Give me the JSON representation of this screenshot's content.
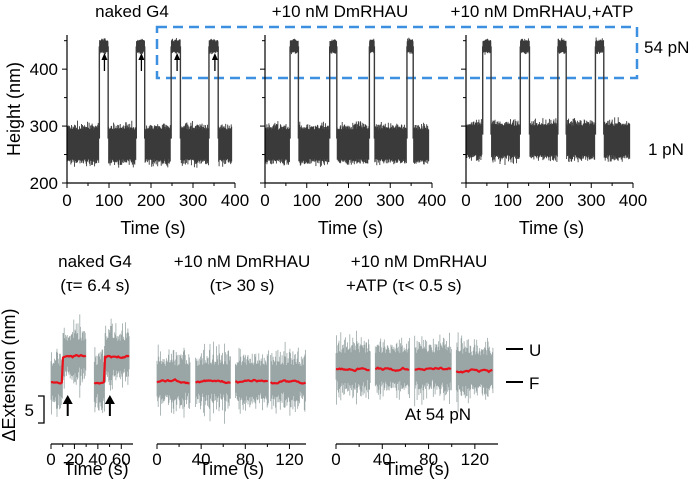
{
  "chart_data": [
    {
      "type": "line",
      "title": "naked G4",
      "xlabel": "Time (s)",
      "ylabel": "Height (nm)",
      "xlim": [
        0,
        400
      ],
      "ylim": [
        200,
        460
      ],
      "xticks": [
        "0",
        "100",
        "200",
        "300",
        "400"
      ],
      "yticks": [
        "200",
        "300",
        "400"
      ],
      "low_level_nm": 268,
      "high_level_nm": 440,
      "high_intervals_s": [
        [
          77,
          98
        ],
        [
          165,
          185
        ],
        [
          248,
          270
        ],
        [
          338,
          360
        ]
      ],
      "arrow_times_s": [
        82,
        170,
        255,
        345
      ]
    },
    {
      "type": "line",
      "title": "+10 nM DmRHAU",
      "xlabel": "Time (s)",
      "xlim": [
        0,
        400
      ],
      "ylim": [
        200,
        460
      ],
      "xticks": [
        "0",
        "100",
        "200",
        "300",
        "400"
      ],
      "low_level_nm": 268,
      "high_level_nm": 440,
      "high_intervals_s": [
        [
          60,
          80
        ],
        [
          155,
          172
        ],
        [
          250,
          262
        ],
        [
          340,
          355
        ]
      ]
    },
    {
      "type": "line",
      "title": "+10 nM DmRHAU,+ATP",
      "xlabel": "Time (s)",
      "xlim": [
        0,
        400
      ],
      "ylim": [
        200,
        460
      ],
      "xticks": [
        "0",
        "100",
        "200",
        "300",
        "400"
      ],
      "low_level_nm": 275,
      "high_level_nm": 440,
      "high_intervals_s": [
        [
          40,
          60
        ],
        [
          130,
          152
        ],
        [
          220,
          240
        ],
        [
          310,
          330
        ]
      ],
      "force_labels": {
        "high": "54 pN",
        "low": "1 pN"
      }
    },
    {
      "type": "line",
      "title": "naked G4",
      "subtitle": "(τ= 6.4 s)",
      "xlabel": "Time (s)",
      "ylabel": "ΔExtension (nm)",
      "scale_bar": "5",
      "xlim": [
        0,
        70
      ],
      "xticks": [
        "0",
        "20",
        "40",
        "60"
      ],
      "segments": [
        {
          "x_start": 0,
          "x_end": 30,
          "f_level": 0,
          "u_level": 6,
          "transition_s": 10
        },
        {
          "x_start": 37,
          "x_end": 67,
          "f_level": 0,
          "u_level": 6,
          "transition_s": 46
        }
      ],
      "arrow_times_s": [
        10,
        46
      ]
    },
    {
      "type": "line",
      "title": "+10 nM DmRHAU",
      "subtitle": "(τ> 30 s)",
      "xlabel": "Time (s)",
      "xlim": [
        0,
        135
      ],
      "xticks": [
        "0",
        "40",
        "80",
        "120"
      ],
      "segments": [
        {
          "x_start": 0,
          "x_end": 30,
          "level": 0
        },
        {
          "x_start": 35,
          "x_end": 67,
          "level": 0
        },
        {
          "x_start": 71,
          "x_end": 101,
          "level": 0
        },
        {
          "x_start": 103,
          "x_end": 135,
          "level": 0
        }
      ]
    },
    {
      "type": "line",
      "title": "+10 nM DmRHAU",
      "subtitle": "+ATP  (τ< 0.5 s)",
      "xlabel": "Time (s)",
      "xlim": [
        0,
        140
      ],
      "xticks": [
        "0",
        "40",
        "80",
        "120"
      ],
      "segments": [
        {
          "x_start": 0,
          "x_end": 30,
          "level": 3
        },
        {
          "x_start": 34,
          "x_end": 64,
          "level": 3
        },
        {
          "x_start": 68,
          "x_end": 100,
          "level": 3
        },
        {
          "x_start": 104,
          "x_end": 136,
          "level": 2.5
        }
      ],
      "annotation": "At 54 pN",
      "level_labels": {
        "unfolded": "U",
        "folded": "F"
      }
    }
  ],
  "highlight_box_color": "#3d8fe0",
  "trace_color": "#3a3a3a",
  "fluct_color": "#9aa6a6",
  "fit_color": "#e8111b"
}
